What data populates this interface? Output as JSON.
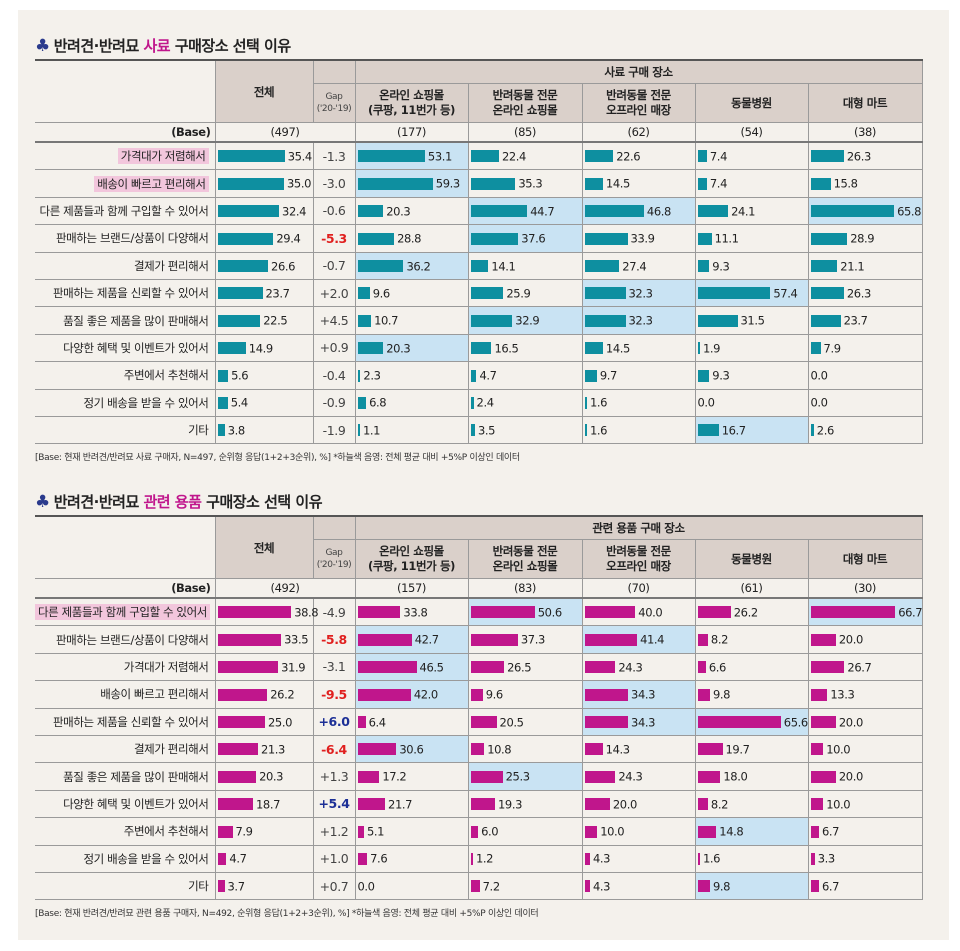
{
  "colors": {
    "food_bar": "#0e8fa0",
    "supplies_bar": "#c0168c",
    "highlight_cell": "#c9e3f3",
    "highlight_label": "#f2c6dc",
    "gap_negative": "#e0201f",
    "gap_positive": "#1c2f96",
    "title_accent": "#c0168c"
  },
  "chart_data": [
    {
      "type": "table",
      "title_prefix": "반려견·반려묘 ",
      "title_accent": "사료",
      "title_suffix": " 구매장소 선택 이유",
      "total_header": "전체",
      "gap_header": "Gap",
      "gap_sub": "('20-'19)",
      "group_header": "사료 구매 장소",
      "columns": [
        "온라인 쇼핑몰\n(쿠팡, 11번가 등)",
        "반려동물 전문\n온라인 쇼핑몰",
        "반려동물 전문\n오프라인 매장",
        "동물병원",
        "대형 마트"
      ],
      "base_label": "(Base)",
      "base_total": "(497)",
      "base": [
        "(177)",
        "(85)",
        "(62)",
        "(54)",
        "(38)"
      ],
      "rows": [
        {
          "label": "가격대가 저렴해서",
          "label_highlight": true,
          "total": 35.4,
          "gap": "-1.3",
          "values": [
            53.1,
            22.4,
            22.6,
            7.4,
            26.3
          ],
          "highlight": [
            1,
            0,
            0,
            0,
            0
          ]
        },
        {
          "label": "배송이 빠르고 편리해서",
          "label_highlight": true,
          "total": 35.0,
          "gap": "-3.0",
          "values": [
            59.3,
            35.3,
            14.5,
            7.4,
            15.8
          ],
          "highlight": [
            1,
            0,
            0,
            0,
            0
          ]
        },
        {
          "label": "다른 제품들과 함께 구입할 수 있어서",
          "total": 32.4,
          "gap": "-0.6",
          "values": [
            20.3,
            44.7,
            46.8,
            24.1,
            65.8
          ],
          "highlight": [
            0,
            1,
            1,
            0,
            1
          ]
        },
        {
          "label": "판매하는 브랜드/상품이 다양해서",
          "total": 29.4,
          "gap": "-5.3",
          "gap_color": "negative",
          "values": [
            28.8,
            37.6,
            33.9,
            11.1,
            28.9
          ],
          "highlight": [
            0,
            1,
            0,
            0,
            0
          ]
        },
        {
          "label": "결제가 편리해서",
          "total": 26.6,
          "gap": "-0.7",
          "values": [
            36.2,
            14.1,
            27.4,
            9.3,
            21.1
          ],
          "highlight": [
            1,
            0,
            0,
            0,
            0
          ]
        },
        {
          "label": "판매하는 제품을 신뢰할 수 있어서",
          "total": 23.7,
          "gap": "+2.0",
          "values": [
            9.6,
            25.9,
            32.3,
            57.4,
            26.3
          ],
          "highlight": [
            0,
            0,
            1,
            1,
            0
          ]
        },
        {
          "label": "품질 좋은 제품을 많이 판매해서",
          "total": 22.5,
          "gap": "+4.5",
          "values": [
            10.7,
            32.9,
            32.3,
            31.5,
            23.7
          ],
          "highlight": [
            0,
            1,
            1,
            0,
            0
          ]
        },
        {
          "label": "다양한 혜택 및 이벤트가 있어서",
          "total": 14.9,
          "gap": "+0.9",
          "values": [
            20.3,
            16.5,
            14.5,
            1.9,
            7.9
          ],
          "highlight": [
            1,
            0,
            0,
            0,
            0
          ]
        },
        {
          "label": "주변에서 추천해서",
          "total": 5.6,
          "gap": "-0.4",
          "values": [
            2.3,
            4.7,
            9.7,
            9.3,
            0.0
          ],
          "highlight": [
            0,
            0,
            0,
            0,
            0
          ]
        },
        {
          "label": "정기 배송을 받을 수 있어서",
          "total": 5.4,
          "gap": "-0.9",
          "values": [
            6.8,
            2.4,
            1.6,
            0.0,
            0.0
          ],
          "highlight": [
            0,
            0,
            0,
            0,
            0
          ]
        },
        {
          "label": "기타",
          "total": 3.8,
          "gap": "-1.9",
          "values": [
            1.1,
            3.5,
            1.6,
            16.7,
            2.6
          ],
          "highlight": [
            0,
            0,
            0,
            1,
            0
          ]
        }
      ],
      "footnote": "[Base: 현재 반려견/반려묘 사료 구매자, N=497, 순위형 응답(1+2+3순위), %] *하늘색 음영: 전체 평균 대비 +5%P 이상인 데이터"
    },
    {
      "type": "table",
      "title_prefix": "반려견·반려묘 ",
      "title_accent": "관련 용품",
      "title_suffix": " 구매장소 선택 이유",
      "total_header": "전체",
      "gap_header": "Gap",
      "gap_sub": "('20-'19)",
      "group_header": "관련 용품 구매 장소",
      "columns": [
        "온라인 쇼핑몰\n(쿠팡, 11번가 등)",
        "반려동물 전문\n온라인 쇼핑몰",
        "반려동물 전문\n오프라인 매장",
        "동물병원",
        "대형 마트"
      ],
      "base_label": "(Base)",
      "base_total": "(492)",
      "base": [
        "(157)",
        "(83)",
        "(70)",
        "(61)",
        "(30)"
      ],
      "rows": [
        {
          "label": "다른 제품들과 함께 구입할 수 있어서",
          "label_highlight": true,
          "total": 38.8,
          "gap": "-4.9",
          "values": [
            33.8,
            50.6,
            40.0,
            26.2,
            66.7
          ],
          "highlight": [
            0,
            1,
            0,
            0,
            1
          ]
        },
        {
          "label": "판매하는 브랜드/상품이 다양해서",
          "total": 33.5,
          "gap": "-5.8",
          "gap_color": "negative",
          "values": [
            42.7,
            37.3,
            41.4,
            8.2,
            20.0
          ],
          "highlight": [
            1,
            0,
            1,
            0,
            0
          ]
        },
        {
          "label": "가격대가 저렴해서",
          "total": 31.9,
          "gap": "-3.1",
          "values": [
            46.5,
            26.5,
            24.3,
            6.6,
            26.7
          ],
          "highlight": [
            1,
            0,
            0,
            0,
            0
          ]
        },
        {
          "label": "배송이 빠르고 편리해서",
          "total": 26.2,
          "gap": "-9.5",
          "gap_color": "negative",
          "values": [
            42.0,
            9.6,
            34.3,
            9.8,
            13.3
          ],
          "highlight": [
            1,
            0,
            1,
            0,
            0
          ]
        },
        {
          "label": "판매하는 제품을 신뢰할 수 있어서",
          "total": 25.0,
          "gap": "+6.0",
          "gap_color": "positive",
          "values": [
            6.4,
            20.5,
            34.3,
            65.6,
            20.0
          ],
          "highlight": [
            0,
            0,
            1,
            1,
            0
          ]
        },
        {
          "label": "결제가 편리해서",
          "total": 21.3,
          "gap": "-6.4",
          "gap_color": "negative",
          "values": [
            30.6,
            10.8,
            14.3,
            19.7,
            10.0
          ],
          "highlight": [
            1,
            0,
            0,
            0,
            0
          ]
        },
        {
          "label": "품질 좋은 제품을 많이 판매해서",
          "total": 20.3,
          "gap": "+1.3",
          "values": [
            17.2,
            25.3,
            24.3,
            18.0,
            20.0
          ],
          "highlight": [
            0,
            1,
            0,
            0,
            0
          ]
        },
        {
          "label": "다양한 혜택 및 이벤트가 있어서",
          "total": 18.7,
          "gap": "+5.4",
          "gap_color": "positive",
          "values": [
            21.7,
            19.3,
            20.0,
            8.2,
            10.0
          ],
          "highlight": [
            0,
            0,
            0,
            0,
            0
          ]
        },
        {
          "label": "주변에서 추천해서",
          "total": 7.9,
          "gap": "+1.2",
          "values": [
            5.1,
            6.0,
            10.0,
            14.8,
            6.7
          ],
          "highlight": [
            0,
            0,
            0,
            1,
            0
          ]
        },
        {
          "label": "정기 배송을 받을 수 있어서",
          "total": 4.7,
          "gap": "+1.0",
          "values": [
            7.6,
            1.2,
            4.3,
            1.6,
            3.3
          ],
          "highlight": [
            0,
            0,
            0,
            0,
            0
          ]
        },
        {
          "label": "기타",
          "total": 3.7,
          "gap": "+0.7",
          "values": [
            0.0,
            7.2,
            4.3,
            9.8,
            6.7
          ],
          "highlight": [
            0,
            0,
            0,
            1,
            0
          ]
        }
      ],
      "footnote": "[Base: 현재 반려견/반려묘 관련 용품 구매자, N=492, 순위형 응답(1+2+3순위), %] *하늘색 음영: 전체 평균 대비 +5%P 이상인 데이터"
    }
  ]
}
